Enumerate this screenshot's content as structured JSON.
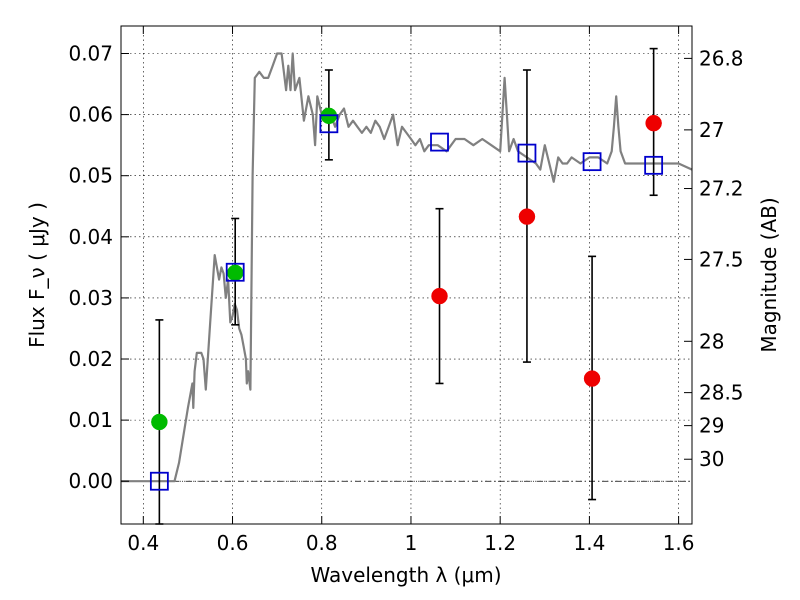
{
  "chart_data": {
    "type": "scatter",
    "xlabel": "Wavelength  λ (μm)",
    "ylabel": "Flux  F_ν  ( μJy )",
    "y2label": "Magnitude (AB)",
    "xlim": [
      0.35,
      1.63
    ],
    "ylim": [
      -0.007,
      0.0745
    ],
    "grid": true,
    "x_ticks": [
      0.4,
      0.6,
      0.8,
      1.0,
      1.2,
      1.4,
      1.6
    ],
    "x_tick_labels": [
      "0.4",
      "0.6",
      "0.8",
      "1",
      "1.2",
      "1.4",
      "1.6"
    ],
    "y_ticks": [
      0.0,
      0.01,
      0.02,
      0.03,
      0.04,
      0.05,
      0.06,
      0.07
    ],
    "y_tick_labels": [
      "0.00",
      "0.01",
      "0.02",
      "0.03",
      "0.04",
      "0.05",
      "0.06",
      "0.07"
    ],
    "y2_ticks": [
      {
        "label": "26.8",
        "flux": 0.0692
      },
      {
        "label": "27",
        "flux": 0.0575
      },
      {
        "label": "27.2",
        "flux": 0.0479
      },
      {
        "label": "27.5",
        "flux": 0.0363
      },
      {
        "label": "28",
        "flux": 0.0229
      },
      {
        "label": "28.5",
        "flux": 0.0145
      },
      {
        "label": "29",
        "flux": 0.0091
      },
      {
        "label": "30",
        "flux": 0.0036
      }
    ],
    "colors": {
      "model": "#808080",
      "green": "#00bb00",
      "red": "#ee0000",
      "box": "#0000cc",
      "errorbar": "#000000",
      "zero_line": "#000000"
    },
    "series": [
      {
        "kind": "line",
        "color": "#808080",
        "x": [
          0.35,
          0.45,
          0.47,
          0.48,
          0.5,
          0.51,
          0.512,
          0.515,
          0.52,
          0.53,
          0.535,
          0.54,
          0.55,
          0.56,
          0.57,
          0.575,
          0.58,
          0.585,
          0.59,
          0.595,
          0.6,
          0.605,
          0.61,
          0.615,
          0.62,
          0.625,
          0.63,
          0.632,
          0.635,
          0.64,
          0.645,
          0.65,
          0.66,
          0.67,
          0.68,
          0.69,
          0.7,
          0.71,
          0.72,
          0.725,
          0.73,
          0.735,
          0.74,
          0.75,
          0.76,
          0.77,
          0.78,
          0.785,
          0.79,
          0.8,
          0.81,
          0.82,
          0.83,
          0.84,
          0.85,
          0.86,
          0.87,
          0.88,
          0.89,
          0.9,
          0.91,
          0.92,
          0.93,
          0.94,
          0.95,
          0.96,
          0.97,
          0.98,
          0.99,
          1.0,
          1.01,
          1.02,
          1.03,
          1.04,
          1.05,
          1.06,
          1.08,
          1.1,
          1.12,
          1.14,
          1.16,
          1.18,
          1.2,
          1.205,
          1.21,
          1.215,
          1.22,
          1.23,
          1.24,
          1.26,
          1.28,
          1.29,
          1.3,
          1.31,
          1.32,
          1.33,
          1.34,
          1.35,
          1.36,
          1.38,
          1.4,
          1.42,
          1.44,
          1.45,
          1.455,
          1.46,
          1.465,
          1.47,
          1.48,
          1.5,
          1.52,
          1.54,
          1.56,
          1.58,
          1.6,
          1.63
        ],
        "y": [
          0.0,
          0.0,
          0.0,
          0.003,
          0.012,
          0.016,
          0.012,
          0.018,
          0.021,
          0.021,
          0.02,
          0.015,
          0.026,
          0.037,
          0.033,
          0.035,
          0.034,
          0.03,
          0.033,
          0.026,
          0.027,
          0.029,
          0.028,
          0.025,
          0.024,
          0.022,
          0.02,
          0.016,
          0.018,
          0.015,
          0.05,
          0.066,
          0.067,
          0.066,
          0.066,
          0.068,
          0.07,
          0.07,
          0.064,
          0.068,
          0.064,
          0.07,
          0.064,
          0.066,
          0.059,
          0.063,
          0.06,
          0.055,
          0.063,
          0.06,
          0.061,
          0.06,
          0.058,
          0.06,
          0.061,
          0.058,
          0.059,
          0.058,
          0.057,
          0.058,
          0.057,
          0.059,
          0.058,
          0.056,
          0.058,
          0.06,
          0.055,
          0.058,
          0.057,
          0.056,
          0.055,
          0.056,
          0.054,
          0.055,
          0.055,
          0.055,
          0.054,
          0.056,
          0.056,
          0.055,
          0.056,
          0.055,
          0.054,
          0.06,
          0.066,
          0.06,
          0.054,
          0.056,
          0.054,
          0.053,
          0.052,
          0.051,
          0.055,
          0.052,
          0.049,
          0.053,
          0.052,
          0.052,
          0.053,
          0.052,
          0.053,
          0.053,
          0.052,
          0.054,
          0.058,
          0.063,
          0.058,
          0.054,
          0.052,
          0.052,
          0.052,
          0.052,
          0.052,
          0.052,
          0.052,
          0.051
        ]
      },
      {
        "kind": "markers",
        "marker": "circle",
        "color": "#00bb00",
        "x": [
          0.436,
          0.606,
          0.816
        ],
        "y": [
          0.0097,
          0.0341,
          0.0598
        ],
        "yerr_low": [
          0.0167,
          0.0085,
          0.0072
        ],
        "yerr_high": [
          0.0167,
          0.0089,
          0.0075
        ]
      },
      {
        "kind": "markers",
        "marker": "circle",
        "color": "#ee0000",
        "x": [
          1.064,
          1.26,
          1.406,
          1.544
        ],
        "y": [
          0.0303,
          0.0433,
          0.0168,
          0.0586
        ],
        "yerr_low": [
          0.0143,
          0.0238,
          0.0198,
          0.0118
        ],
        "yerr_high": [
          0.0143,
          0.024,
          0.02,
          0.0122
        ]
      },
      {
        "kind": "markers",
        "marker": "square-open",
        "color": "#0000cc",
        "x": [
          0.436,
          0.606,
          0.816,
          1.064,
          1.26,
          1.406,
          1.544
        ],
        "y": [
          0.0,
          0.0342,
          0.0585,
          0.0555,
          0.0537,
          0.0523,
          0.0517
        ]
      }
    ]
  }
}
